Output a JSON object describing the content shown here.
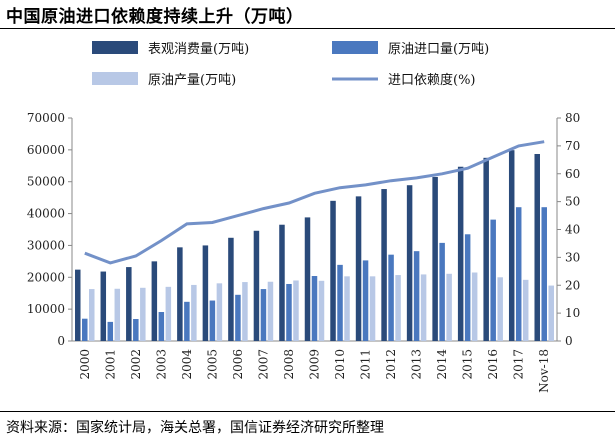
{
  "title": "中国原油进口依赖度持续上升（万吨）",
  "source": "资料来源：国家统计局，海关总署，国信证券经济研究所整理",
  "colors": {
    "consumption": "#2a4a7a",
    "import": "#4a78bf",
    "production": "#b8c8e6",
    "dependency": "#7391c8"
  },
  "chart_data": {
    "type": "bar",
    "categories": [
      "2000",
      "2001",
      "2002",
      "2003",
      "2004",
      "2005",
      "2006",
      "2007",
      "2008",
      "2009",
      "2010",
      "2011",
      "2012",
      "2013",
      "2014",
      "2015",
      "2016",
      "2017",
      "Nov-18"
    ],
    "series": [
      {
        "name": "表观消费量(万吨)",
        "axis": "left",
        "type": "bar",
        "values": [
          22400,
          21800,
          23200,
          25000,
          29400,
          30000,
          32400,
          34600,
          36500,
          38800,
          44000,
          45400,
          47700,
          48900,
          51500,
          54700,
          57500,
          59900,
          58700
        ]
      },
      {
        "name": "原油进口量(万吨)",
        "axis": "left",
        "type": "bar",
        "values": [
          7000,
          6000,
          6900,
          9100,
          12300,
          12700,
          14500,
          16300,
          17900,
          20400,
          23900,
          25300,
          27100,
          28200,
          30800,
          33500,
          38100,
          42000,
          42000
        ]
      },
      {
        "name": "原油产量(万吨)",
        "axis": "left",
        "type": "bar",
        "values": [
          16300,
          16400,
          16700,
          17000,
          17600,
          18100,
          18500,
          18600,
          19000,
          18900,
          20300,
          20300,
          20700,
          20900,
          21100,
          21500,
          20000,
          19200,
          17400
        ]
      },
      {
        "name": "进口依赖度(%)",
        "axis": "right",
        "type": "line",
        "values": [
          31.5,
          28,
          30.5,
          36,
          42,
          42.5,
          45,
          47.5,
          49.5,
          53,
          55,
          56,
          57.5,
          58.5,
          60,
          62,
          66,
          70,
          71.5
        ]
      }
    ],
    "y_left": {
      "min": 0,
      "max": 70000,
      "ticks": [
        0,
        10000,
        20000,
        30000,
        40000,
        50000,
        60000,
        70000
      ]
    },
    "y_right": {
      "min": 0,
      "max": 80,
      "ticks": [
        0,
        10,
        20,
        30,
        40,
        50,
        60,
        70,
        80
      ]
    },
    "legend": {
      "position": "top",
      "columns": 2
    }
  }
}
